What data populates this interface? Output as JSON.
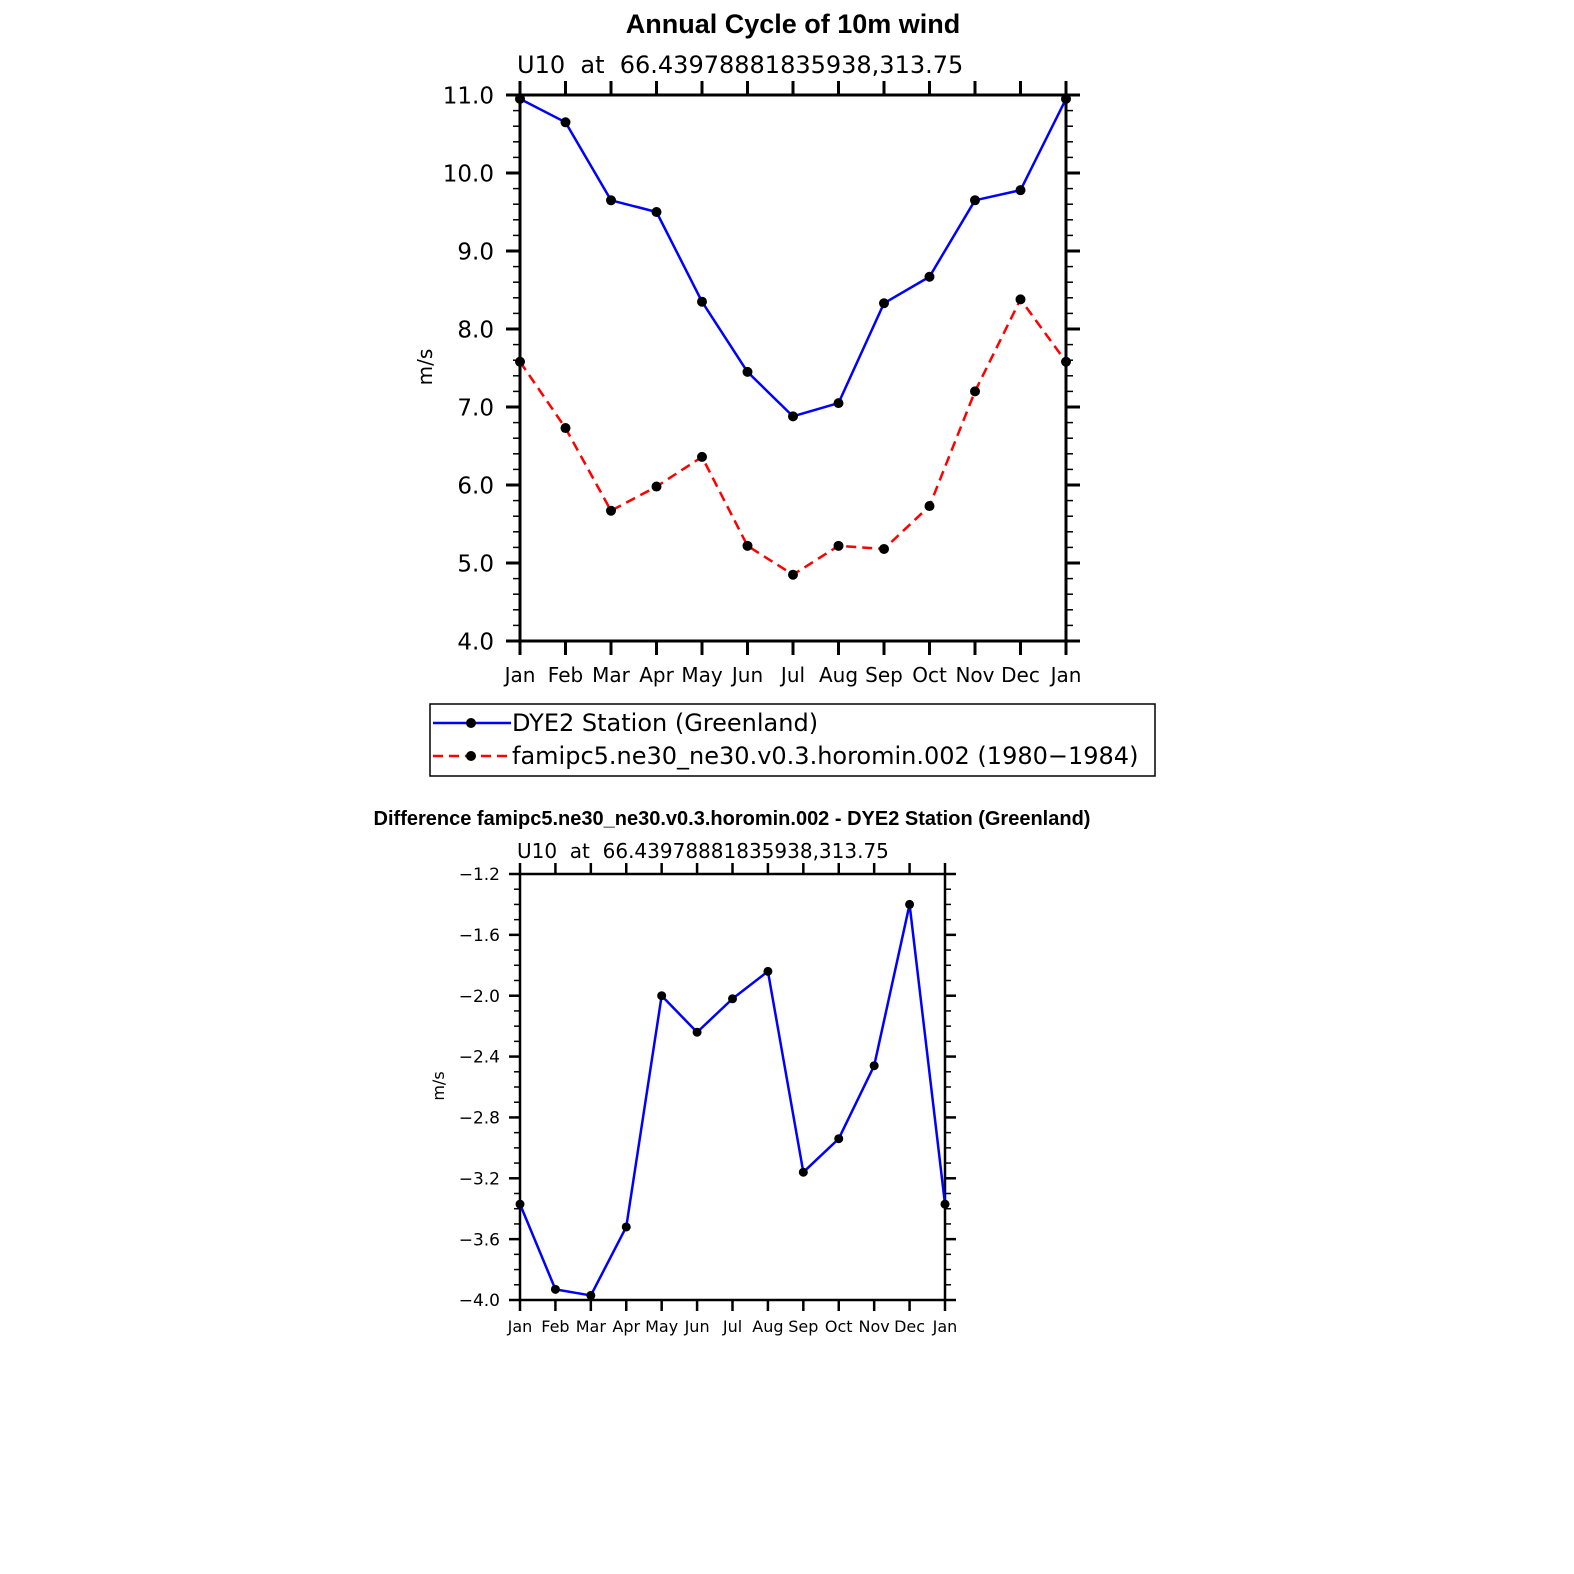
{
  "colors": {
    "series_blue": "#0000ff",
    "series_red": "#ff0000",
    "marker": "#000000",
    "axis": "#000000"
  },
  "chart_data": [
    {
      "type": "line",
      "title": "Annual Cycle of 10m wind",
      "subtitle": "U10  at  66.43978881835938,313.75",
      "xlabel": "",
      "ylabel": "m/s",
      "categories": [
        "Jan",
        "Feb",
        "Mar",
        "Apr",
        "May",
        "Jun",
        "Jul",
        "Aug",
        "Sep",
        "Oct",
        "Nov",
        "Dec",
        "Jan"
      ],
      "ylim": [
        4.0,
        11.0
      ],
      "yticks": [
        "4.0",
        "5.0",
        "6.0",
        "7.0",
        "8.0",
        "9.0",
        "10.0",
        "11.0"
      ],
      "series": [
        {
          "name": "DYE2 Station (Greenland)",
          "color": "#0000ff",
          "dash": "solid",
          "values": [
            10.95,
            10.65,
            9.65,
            9.5,
            8.35,
            7.45,
            6.88,
            7.05,
            8.33,
            8.67,
            9.65,
            9.78,
            10.95
          ]
        },
        {
          "name": "famipc5.ne30_ne30.v0.3.horomin.002 (1980−1984)",
          "color": "#ff0000",
          "dash": "dashed",
          "values": [
            7.58,
            6.73,
            5.67,
            5.98,
            6.36,
            5.22,
            4.85,
            5.22,
            5.18,
            5.73,
            7.2,
            8.38,
            7.58
          ]
        }
      ],
      "legend_position": "bottom"
    },
    {
      "type": "line",
      "title": "Difference famipc5.ne30_ne30.v0.3.horomin.002 - DYE2 Station (Greenland)",
      "subtitle": "U10  at  66.43978881835938,313.75",
      "xlabel": "",
      "ylabel": "m/s",
      "categories": [
        "Jan",
        "Feb",
        "Mar",
        "Apr",
        "May",
        "Jun",
        "Jul",
        "Aug",
        "Sep",
        "Oct",
        "Nov",
        "Dec",
        "Jan"
      ],
      "ylim": [
        -4.0,
        -1.2
      ],
      "yticks": [
        "−4.0",
        "−3.6",
        "−3.2",
        "−2.8",
        "−2.4",
        "−2.0",
        "−1.6",
        "−1.2"
      ],
      "series": [
        {
          "name": "Difference",
          "color": "#0000ff",
          "dash": "solid",
          "values": [
            -3.37,
            -3.93,
            -3.97,
            -3.52,
            -2.0,
            -2.24,
            -2.02,
            -1.84,
            -3.16,
            -2.94,
            -2.46,
            -1.4,
            -3.37
          ]
        }
      ]
    }
  ]
}
